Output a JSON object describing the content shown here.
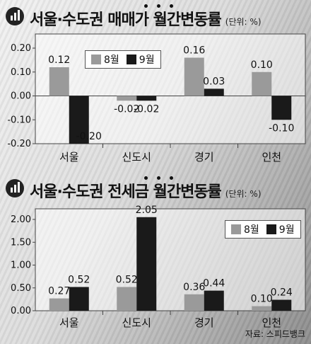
{
  "source": "자료: 스피드뱅크",
  "colors": {
    "aug": "#9a9a9a",
    "sep": "#1a1a1a"
  },
  "chart_data": [
    {
      "type": "bar",
      "title": "서울·수도권 매매가 월간변동률",
      "unit": "(단위: %)",
      "categories": [
        "서울",
        "신도시",
        "경기",
        "인천"
      ],
      "series": [
        {
          "name": "8월",
          "values": [
            0.12,
            -0.02,
            0.16,
            0.1
          ],
          "labels": [
            "0.12",
            "-0.02",
            "0.16",
            "0.10"
          ]
        },
        {
          "name": "9월",
          "values": [
            -0.2,
            -0.02,
            0.03,
            -0.1
          ],
          "labels": [
            "-0.20",
            "-0.02",
            "0.03",
            "-0.10"
          ]
        }
      ],
      "ylim": [
        -0.2,
        0.2
      ],
      "yticks": [
        0.2,
        0.1,
        0.0,
        -0.1,
        -0.2
      ],
      "ytick_labels": [
        "0.20",
        "0.10",
        "0.00",
        "-0.10",
        "-0.20"
      ],
      "legend": "top-left",
      "grid": false
    },
    {
      "type": "bar",
      "title": "서울·수도권 전세금 월간변동률",
      "unit": "(단위: %)",
      "categories": [
        "서울",
        "신도시",
        "경기",
        "인천"
      ],
      "series": [
        {
          "name": "8월",
          "values": [
            0.27,
            0.52,
            0.36,
            0.1
          ],
          "labels": [
            "0.27",
            "0.52",
            "0.36",
            "0.10"
          ]
        },
        {
          "name": "9월",
          "values": [
            0.52,
            2.05,
            0.44,
            0.24
          ],
          "labels": [
            "0.52",
            "2.05",
            "0.44",
            "0.24"
          ]
        }
      ],
      "ylim": [
        0.0,
        2.0
      ],
      "yticks": [
        2.0,
        1.5,
        1.0,
        0.5,
        0.0
      ],
      "ytick_labels": [
        "2.00",
        "1.50",
        "1.00",
        "0.50",
        "0.00"
      ],
      "legend": "top-right",
      "grid": false
    }
  ]
}
